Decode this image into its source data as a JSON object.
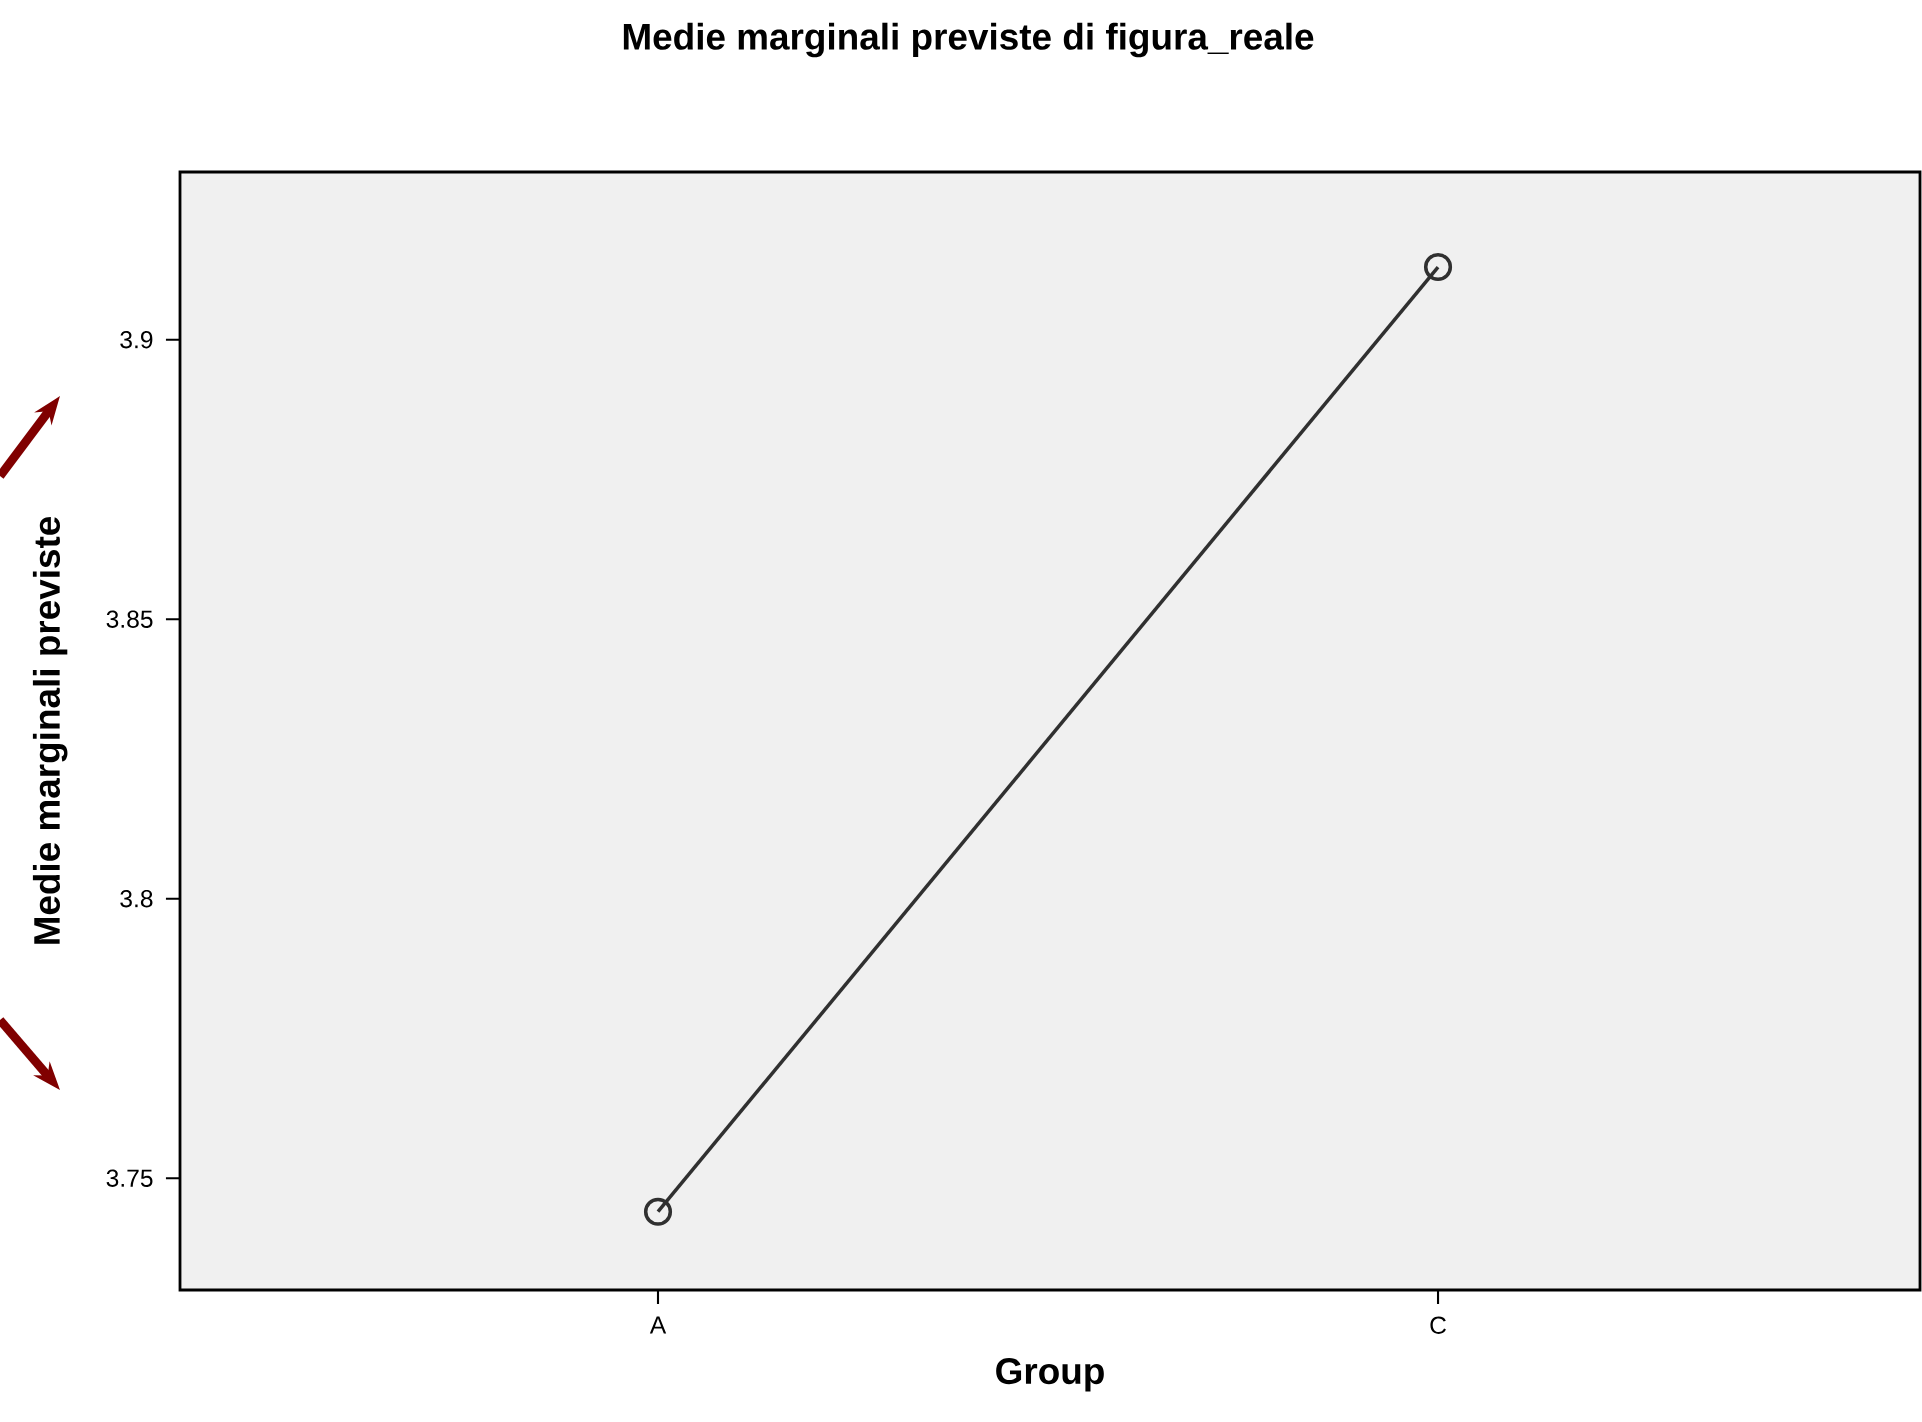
{
  "chart_data": {
    "type": "line",
    "title": "Medie marginali previste di figura_reale",
    "xlabel": "Group",
    "ylabel": "Medie marginali previste",
    "categories": [
      "A",
      "C"
    ],
    "series": [
      {
        "color": "#303030",
        "values": [
          3.744,
          3.913
        ]
      }
    ],
    "ylim": [
      3.73,
      3.93
    ],
    "yticks": [
      3.75,
      3.8,
      3.85,
      3.9
    ],
    "marker": "circle",
    "line_style": "solid"
  }
}
